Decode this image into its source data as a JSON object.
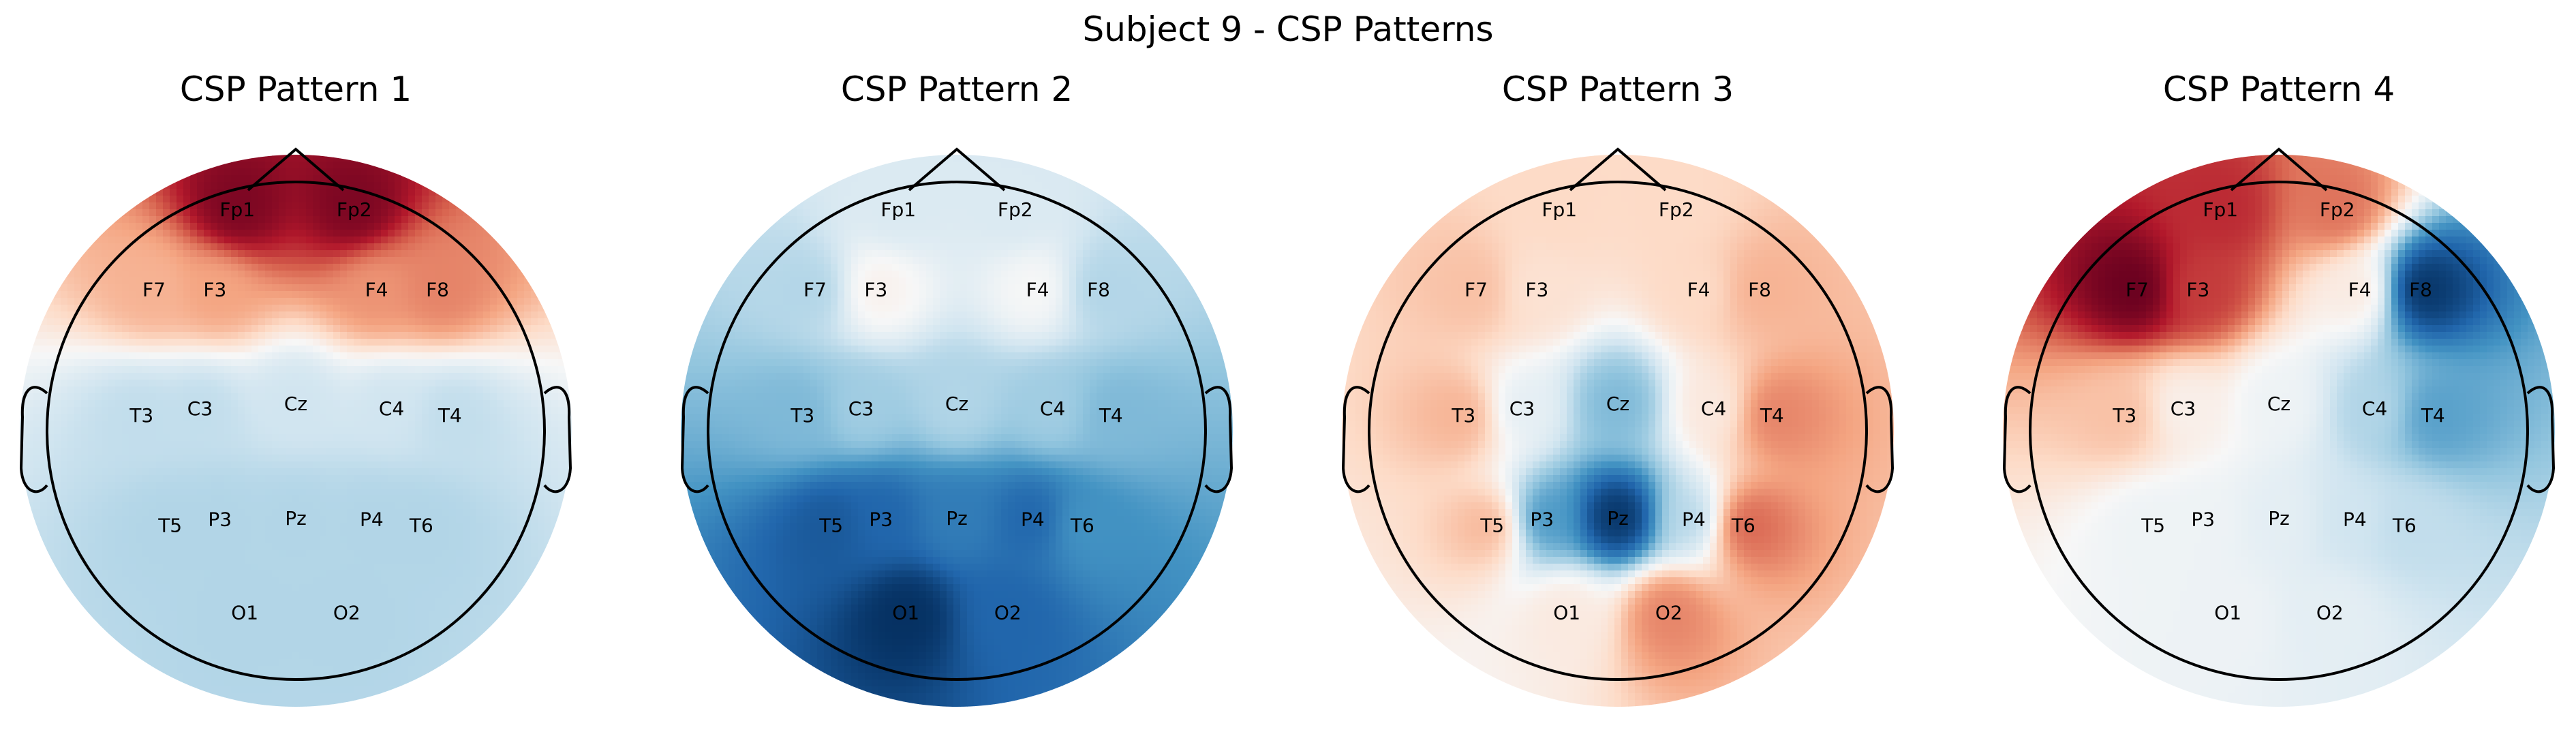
{
  "figure": {
    "suptitle": "Subject 9 - CSP Patterns"
  },
  "chart_data": [
    {
      "type": "heatmap",
      "subtype": "topomap",
      "title": "CSP Pattern 1",
      "colormap": "RdBu_r",
      "electrodes": [
        "Fp1",
        "Fp2",
        "F7",
        "F3",
        "F4",
        "F8",
        "T3",
        "C3",
        "Cz",
        "C4",
        "T4",
        "T5",
        "P3",
        "Pz",
        "P4",
        "T6",
        "O1",
        "O2"
      ],
      "values": [
        0.95,
        0.95,
        0.35,
        0.4,
        0.45,
        0.5,
        -0.25,
        -0.25,
        -0.2,
        -0.2,
        -0.25,
        -0.3,
        -0.3,
        -0.3,
        -0.3,
        -0.3,
        -0.3,
        -0.3
      ]
    },
    {
      "type": "heatmap",
      "subtype": "topomap",
      "title": "CSP Pattern 2",
      "colormap": "RdBu_r",
      "electrodes": [
        "Fp1",
        "Fp2",
        "F7",
        "F3",
        "F4",
        "F8",
        "T3",
        "C3",
        "Cz",
        "C4",
        "T4",
        "T5",
        "P3",
        "Pz",
        "P4",
        "T6",
        "O1",
        "O2"
      ],
      "values": [
        -0.15,
        -0.15,
        -0.3,
        0.05,
        0.0,
        -0.3,
        -0.45,
        -0.35,
        -0.3,
        -0.35,
        -0.45,
        -0.85,
        -0.8,
        -0.7,
        -0.8,
        -0.6,
        -1.0,
        -0.8
      ]
    },
    {
      "type": "heatmap",
      "subtype": "topomap",
      "title": "CSP Pattern 3",
      "colormap": "RdBu_r",
      "electrodes": [
        "Fp1",
        "Fp2",
        "F7",
        "F3",
        "F4",
        "F8",
        "T3",
        "C3",
        "Cz",
        "C4",
        "T4",
        "T5",
        "P3",
        "Pz",
        "P4",
        "T6",
        "O1",
        "O2"
      ],
      "values": [
        0.2,
        0.2,
        0.3,
        0.15,
        0.2,
        0.35,
        0.35,
        -0.1,
        -0.45,
        0.1,
        0.5,
        0.35,
        -0.6,
        -1.0,
        -0.3,
        0.6,
        0.1,
        0.5
      ]
    },
    {
      "type": "heatmap",
      "subtype": "topomap",
      "title": "CSP Pattern 4",
      "colormap": "RdBu_r",
      "electrodes": [
        "Fp1",
        "Fp2",
        "F7",
        "F3",
        "F4",
        "F8",
        "T3",
        "C3",
        "Cz",
        "C4",
        "T4",
        "T5",
        "P3",
        "Pz",
        "P4",
        "T6",
        "O1",
        "O2"
      ],
      "values": [
        0.75,
        0.55,
        1.0,
        0.7,
        0.1,
        -1.0,
        0.3,
        0.05,
        -0.05,
        -0.3,
        -0.55,
        -0.05,
        -0.05,
        -0.1,
        -0.2,
        -0.25,
        -0.05,
        -0.1
      ]
    }
  ]
}
